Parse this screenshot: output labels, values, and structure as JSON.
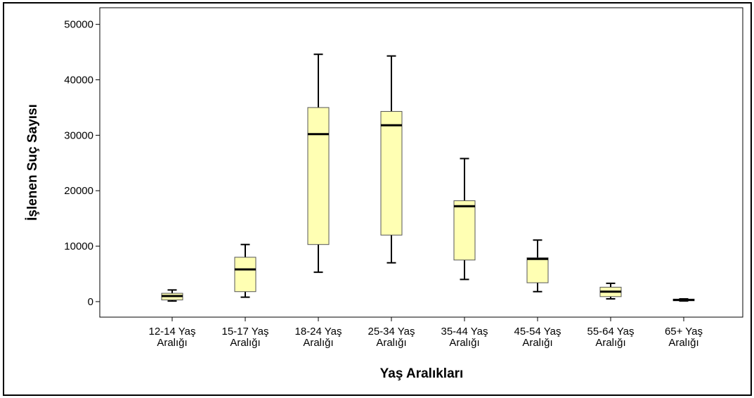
{
  "chart_data": {
    "type": "boxplot",
    "title": "",
    "xlabel": "Yaş Aralıkları",
    "ylabel": "İşlenen Suç Sayısı",
    "ylim": [
      -2800,
      53000
    ],
    "yticks": [
      0,
      10000,
      20000,
      30000,
      40000,
      50000
    ],
    "ytick_labels": [
      "0",
      "10000",
      "20000",
      "30000",
      "40000",
      "50000"
    ],
    "grid": false,
    "colors": {
      "box_fill": "#ffffb3",
      "box_stroke": "#555555",
      "median": "#000000",
      "whisker": "#000000"
    },
    "categories": [
      {
        "line1": "12-14 Yaş",
        "line2": "Aralığı"
      },
      {
        "line1": "15-17 Yaş",
        "line2": "Aralığı"
      },
      {
        "line1": "18-24 Yaş",
        "line2": "Aralığı"
      },
      {
        "line1": "25-34 Yaş",
        "line2": "Aralığı"
      },
      {
        "line1": "35-44 Yaş",
        "line2": "Aralığı"
      },
      {
        "line1": "45-54 Yaş",
        "line2": "Aralığı"
      },
      {
        "line1": "55-64 Yaş",
        "line2": "Aralığı"
      },
      {
        "line1": "65+ Yaş",
        "line2": "Aralığı"
      }
    ],
    "boxes": [
      {
        "min": 100,
        "q1": 300,
        "median": 1000,
        "q3": 1500,
        "max": 2100
      },
      {
        "min": 800,
        "q1": 1800,
        "median": 5800,
        "q3": 8000,
        "max": 10300
      },
      {
        "min": 5300,
        "q1": 10300,
        "median": 30200,
        "q3": 35000,
        "max": 44600
      },
      {
        "min": 7000,
        "q1": 12000,
        "median": 31800,
        "q3": 34300,
        "max": 44300
      },
      {
        "min": 4000,
        "q1": 7500,
        "median": 17200,
        "q3": 18200,
        "max": 25800
      },
      {
        "min": 1800,
        "q1": 3400,
        "median": 7700,
        "q3": 7900,
        "max": 11100
      },
      {
        "min": 500,
        "q1": 900,
        "median": 1800,
        "q3": 2600,
        "max": 3300
      },
      {
        "min": 100,
        "q1": 150,
        "median": 300,
        "q3": 450,
        "max": 500
      }
    ]
  }
}
